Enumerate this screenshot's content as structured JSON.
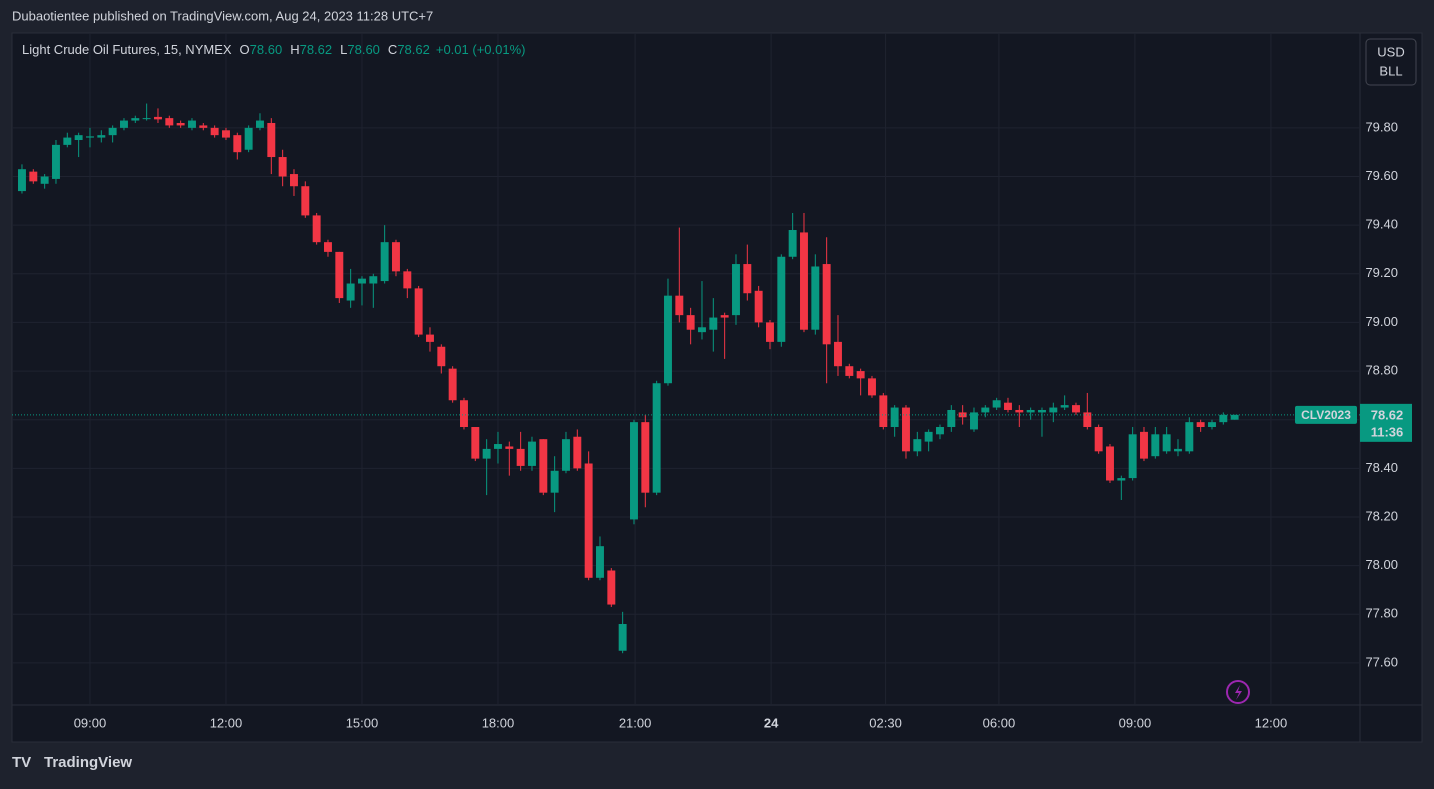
{
  "header": "Dubaotientee published on TradingView.com, Aug 24, 2023 11:28 UTC+7",
  "footer": "TradingView",
  "chart_data": {
    "type": "candlestick",
    "legend": {
      "symbol": "Light Crude Oil Futures, 15, NYMEX",
      "ohlc": [
        {
          "label": "O",
          "value": "78.60"
        },
        {
          "label": "H",
          "value": "78.62"
        },
        {
          "label": "L",
          "value": "78.60"
        },
        {
          "label": "C",
          "value": "78.62"
        }
      ],
      "change": "+0.01 (+0.01%)"
    },
    "currency": [
      "USD",
      "BLL"
    ],
    "price_tag": {
      "symbol": "CLV2023",
      "price": 78.62,
      "price_label": "78.62",
      "countdown": "11:36"
    },
    "up_color": "#089981",
    "down_color": "#f23645",
    "open": [
      79.54,
      79.62,
      79.57,
      79.59,
      79.73,
      79.75,
      79.76,
      79.76,
      79.77,
      79.8,
      79.83,
      79.84,
      79.845,
      79.84,
      79.82,
      79.8,
      79.81,
      79.8,
      79.79,
      79.77,
      79.71,
      79.8,
      79.82,
      79.68,
      79.61,
      79.56,
      79.44,
      79.33,
      79.29,
      79.09,
      79.16,
      79.16,
      79.17,
      79.33,
      79.21,
      79.14,
      78.95,
      78.9,
      78.81,
      78.68,
      78.57,
      78.44,
      78.48,
      78.49,
      78.48,
      78.41,
      78.52,
      78.3,
      78.39,
      78.53,
      78.42,
      77.95,
      77.98,
      77.65,
      78.19,
      78.59,
      78.3,
      78.75,
      79.11,
      79.03,
      78.96,
      78.97,
      79.03,
      79.03,
      79.24,
      79.13,
      79.0,
      78.92,
      79.27,
      79.37,
      78.97,
      79.24,
      78.92,
      78.82,
      78.8,
      78.77,
      78.7,
      78.57,
      78.65,
      78.47,
      78.51,
      78.54,
      78.57,
      78.63,
      78.56,
      78.63,
      78.65,
      78.67,
      78.64,
      78.63,
      78.63,
      78.63,
      78.65,
      78.66,
      78.63,
      78.57,
      78.49,
      78.35,
      78.36,
      78.55,
      78.45,
      78.47,
      78.47,
      78.47,
      78.59,
      78.57,
      78.59,
      78.6
    ],
    "high": [
      79.65,
      79.63,
      79.61,
      79.75,
      79.78,
      79.78,
      79.8,
      79.79,
      79.81,
      79.84,
      79.85,
      79.9,
      79.88,
      79.85,
      79.83,
      79.84,
      79.82,
      79.81,
      79.8,
      79.78,
      79.81,
      79.86,
      79.84,
      79.71,
      79.63,
      79.58,
      79.45,
      79.34,
      79.29,
      79.22,
      79.19,
      79.2,
      79.4,
      79.34,
      79.22,
      79.15,
      78.98,
      78.91,
      78.82,
      78.69,
      78.57,
      78.52,
      78.55,
      78.51,
      78.55,
      78.53,
      78.52,
      78.45,
      78.55,
      78.56,
      78.47,
      78.12,
      77.99,
      77.81,
      78.6,
      78.62,
      78.76,
      79.18,
      79.39,
      79.06,
      79.17,
      79.1,
      79.04,
      79.28,
      79.32,
      79.15,
      79.01,
      79.28,
      79.45,
      79.45,
      79.28,
      79.35,
      79.03,
      78.83,
      78.81,
      78.78,
      78.71,
      78.66,
      78.66,
      78.55,
      78.56,
      78.58,
      78.66,
      78.66,
      78.65,
      78.66,
      78.69,
      78.69,
      78.66,
      78.65,
      78.65,
      78.67,
      78.7,
      78.67,
      78.71,
      78.58,
      78.5,
      78.37,
      78.57,
      78.57,
      78.57,
      78.57,
      78.52,
      78.61,
      78.6,
      78.6,
      78.63,
      78.62
    ],
    "low": [
      79.53,
      79.57,
      79.55,
      79.57,
      79.72,
      79.68,
      79.72,
      79.74,
      79.74,
      79.79,
      79.82,
      79.83,
      79.82,
      79.8,
      79.8,
      79.79,
      79.79,
      79.76,
      79.75,
      79.67,
      79.7,
      79.79,
      79.61,
      79.56,
      79.52,
      79.43,
      79.32,
      79.27,
      79.08,
      79.06,
      79.07,
      79.06,
      79.16,
      79.19,
      79.1,
      78.94,
      78.88,
      78.79,
      78.67,
      78.56,
      78.43,
      78.29,
      78.42,
      78.37,
      78.39,
      78.39,
      78.29,
      78.22,
      78.38,
      78.39,
      77.94,
      77.94,
      77.83,
      77.64,
      78.17,
      78.24,
      78.29,
      78.74,
      79.0,
      78.91,
      78.93,
      78.88,
      78.85,
      78.99,
      79.09,
      78.98,
      78.89,
      78.9,
      79.26,
      78.96,
      78.95,
      78.75,
      78.78,
      78.77,
      78.7,
      78.69,
      78.56,
      78.53,
      78.44,
      78.45,
      78.47,
      78.52,
      78.55,
      78.58,
      78.55,
      78.61,
      78.64,
      78.63,
      78.57,
      78.6,
      78.53,
      78.59,
      78.64,
      78.62,
      78.56,
      78.46,
      78.34,
      78.27,
      78.35,
      78.43,
      78.44,
      78.46,
      78.45,
      78.46,
      78.55,
      78.56,
      78.58,
      78.6
    ],
    "close": [
      79.63,
      79.58,
      79.6,
      79.73,
      79.76,
      79.77,
      79.765,
      79.77,
      79.8,
      79.83,
      79.84,
      79.84,
      79.835,
      79.81,
      79.81,
      79.83,
      79.8,
      79.77,
      79.76,
      79.7,
      79.8,
      79.83,
      79.68,
      79.6,
      79.56,
      79.44,
      79.33,
      79.29,
      79.1,
      79.16,
      79.18,
      79.19,
      79.33,
      79.21,
      79.14,
      78.95,
      78.92,
      78.82,
      78.68,
      78.57,
      78.44,
      78.48,
      78.5,
      78.48,
      78.41,
      78.51,
      78.3,
      78.39,
      78.52,
      78.4,
      77.95,
      78.08,
      77.84,
      77.76,
      78.59,
      78.3,
      78.75,
      79.11,
      79.03,
      78.97,
      78.98,
      79.02,
      79.02,
      79.24,
      79.12,
      79.0,
      78.92,
      79.27,
      79.38,
      78.97,
      79.23,
      78.91,
      78.82,
      78.78,
      78.77,
      78.7,
      78.57,
      78.65,
      78.47,
      78.52,
      78.55,
      78.57,
      78.64,
      78.61,
      78.63,
      78.65,
      78.68,
      78.64,
      78.63,
      78.64,
      78.64,
      78.65,
      78.66,
      78.63,
      78.57,
      78.47,
      78.35,
      78.36,
      78.54,
      78.44,
      78.54,
      78.54,
      78.48,
      78.59,
      78.57,
      78.59,
      78.62,
      78.62
    ],
    "xlim": [
      -0.88,
      118.06
    ],
    "xticks": [
      {
        "value": 6,
        "label": "09:00"
      },
      {
        "value": 18,
        "label": "12:00"
      },
      {
        "value": 30,
        "label": "15:00"
      },
      {
        "value": 42,
        "label": "18:00"
      },
      {
        "value": 54.1,
        "label": "21:00"
      },
      {
        "value": 66.1,
        "label": "24"
      },
      {
        "value": 76.2,
        "label": "02:30"
      },
      {
        "value": 86.2,
        "label": "06:00"
      },
      {
        "value": 98.2,
        "label": "09:00"
      },
      {
        "value": 110.2,
        "label": "12:00"
      }
    ],
    "ylim": [
      77.427,
      80.19
    ],
    "yticks": [
      {
        "value": 77.6,
        "label": "77.60"
      },
      {
        "value": 77.8,
        "label": "77.80"
      },
      {
        "value": 78.0,
        "label": "78.00"
      },
      {
        "value": 78.2,
        "label": "78.20"
      },
      {
        "value": 78.4,
        "label": "78.40"
      },
      {
        "value": 78.6,
        "label": "78.60"
      },
      {
        "value": 78.8,
        "label": "78.80"
      },
      {
        "value": 79.0,
        "label": "79.00"
      },
      {
        "value": 79.2,
        "label": "79.20"
      },
      {
        "value": 79.4,
        "label": "79.40"
      },
      {
        "value": 79.6,
        "label": "79.60"
      },
      {
        "value": 79.8,
        "label": "79.80"
      }
    ],
    "grid": true
  }
}
